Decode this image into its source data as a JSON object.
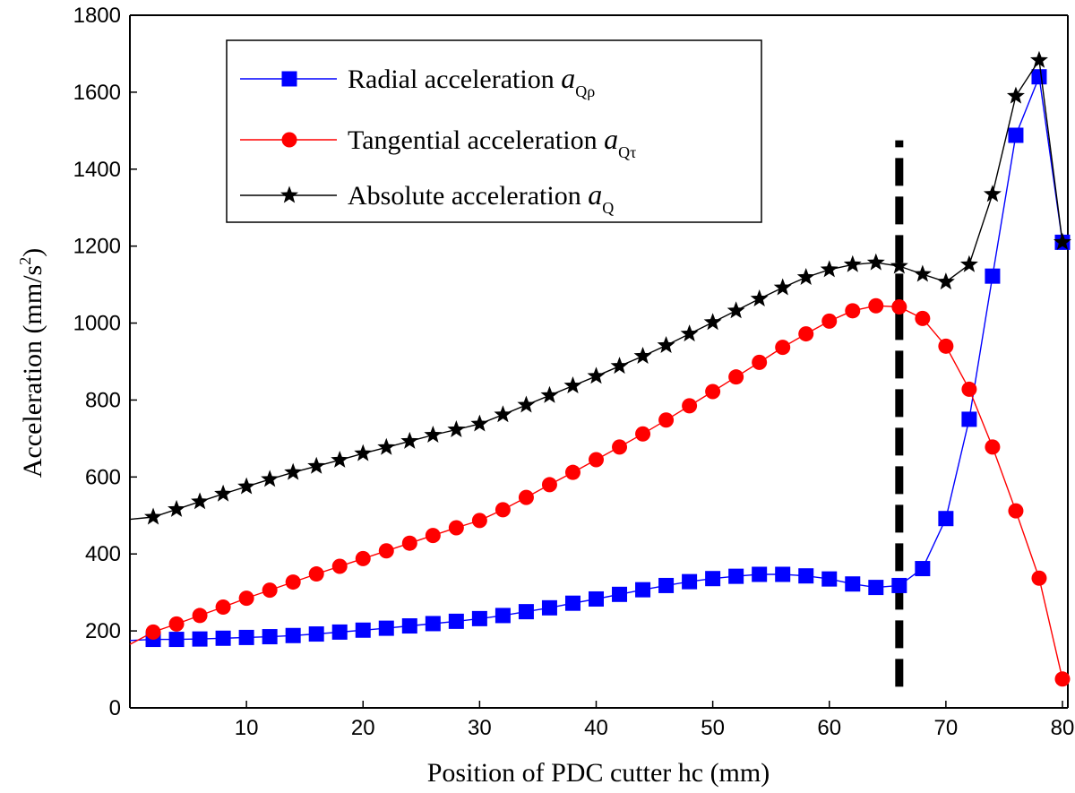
{
  "chart_data": {
    "type": "line",
    "title": "",
    "xlabel": "Position of PDC cutter hc (mm)",
    "ylabel": "Acceleration (mm/s",
    "ylabel_sup": "2",
    "ylabel_tail": ")",
    "xlim": [
      0,
      80
    ],
    "ylim": [
      0,
      1800
    ],
    "xticks": [
      10,
      20,
      30,
      40,
      50,
      60,
      70,
      80
    ],
    "yticks": [
      0,
      200,
      400,
      600,
      800,
      1000,
      1200,
      1400,
      1600,
      1800
    ],
    "legend_position": "top-left",
    "x": [
      2,
      4,
      6,
      8,
      10,
      12,
      14,
      16,
      18,
      20,
      22,
      24,
      26,
      28,
      30,
      32,
      34,
      36,
      38,
      40,
      42,
      44,
      46,
      48,
      50,
      52,
      54,
      56,
      58,
      60,
      62,
      64,
      66,
      68,
      70,
      72,
      74,
      76,
      78,
      80
    ],
    "series": [
      {
        "name": "Radial acceleration",
        "symbol": "a",
        "subscript": "Qρ",
        "color": "#0000ff",
        "marker": "square",
        "line_start": [
          0,
          175
        ],
        "values": [
          178,
          178,
          179,
          181,
          183,
          185,
          188,
          192,
          197,
          202,
          207,
          213,
          219,
          225,
          232,
          240,
          250,
          260,
          272,
          283,
          295,
          307,
          318,
          328,
          336,
          342,
          347,
          347,
          343,
          335,
          322,
          313,
          318,
          362,
          492,
          750,
          1122,
          1488,
          1640,
          1210
        ]
      },
      {
        "name": "Tangential acceleration",
        "symbol": "a",
        "subscript": "Qτ",
        "color": "#ff0000",
        "marker": "circle",
        "line_start": [
          0,
          165
        ],
        "values": [
          197,
          218,
          240,
          262,
          285,
          306,
          327,
          348,
          368,
          388,
          408,
          428,
          448,
          468,
          487,
          515,
          547,
          580,
          612,
          645,
          678,
          712,
          748,
          785,
          822,
          860,
          898,
          937,
          972,
          1005,
          1032,
          1045,
          1042,
          1012,
          940,
          828,
          678,
          512,
          337,
          75
        ]
      },
      {
        "name": "Absolute acceleration",
        "symbol": "a",
        "subscript": "Q",
        "color": "#000000",
        "marker": "star",
        "line_start": [
          0,
          490
        ],
        "values": [
          496,
          516,
          536,
          556,
          575,
          594,
          612,
          628,
          644,
          661,
          677,
          693,
          709,
          723,
          738,
          762,
          787,
          812,
          837,
          862,
          888,
          914,
          942,
          972,
          1002,
          1032,
          1063,
          1092,
          1119,
          1139,
          1152,
          1157,
          1148,
          1127,
          1107,
          1152,
          1335,
          1590,
          1683,
          1210
        ]
      }
    ],
    "annotations": [
      {
        "type": "vertical-dashed-line",
        "x": 66,
        "y_from": 55,
        "y_to": 1475,
        "color": "#000000"
      }
    ]
  }
}
